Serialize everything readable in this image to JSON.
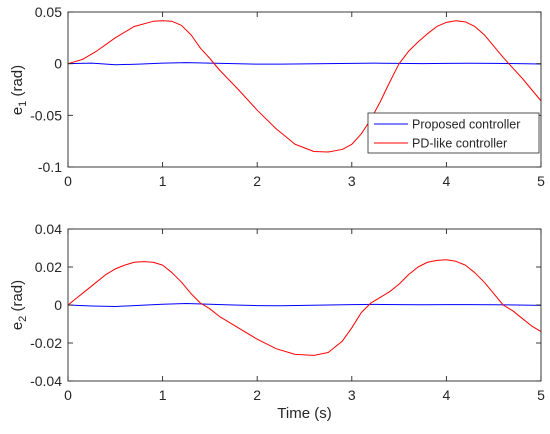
{
  "chart_data": [
    {
      "type": "line",
      "xlabel": "",
      "ylabel": "e",
      "ylabel_sub": "1",
      "ylabel_unit": " (rad)",
      "xlim": [
        0,
        5
      ],
      "ylim": [
        -0.1,
        0.05
      ],
      "xticks": [
        0,
        1,
        2,
        3,
        4,
        5
      ],
      "xtick_labels": [
        "0",
        "1",
        "2",
        "3",
        "4",
        "5"
      ],
      "yticks": [
        -0.1,
        -0.05,
        0,
        0.05
      ],
      "ytick_labels": [
        "-0.1",
        "-0.05",
        "0",
        "0.05"
      ],
      "grid": false,
      "legend": {
        "location": "right",
        "entries": [
          "Proposed controller",
          "PD-like controller"
        ]
      },
      "series": [
        {
          "name": "Proposed controller",
          "color": "#0000ff",
          "x": [
            0,
            0.25,
            0.5,
            0.75,
            1.0,
            1.25,
            1.5,
            1.75,
            2.0,
            2.25,
            2.5,
            2.75,
            3.0,
            3.25,
            3.5,
            3.75,
            4.0,
            4.25,
            4.5,
            4.75,
            5.0
          ],
          "y": [
            0,
            0.0005,
            -0.001,
            -0.0005,
            0.0005,
            0.001,
            0.0005,
            0,
            -0.0005,
            -0.0005,
            -0.0002,
            0,
            0.0003,
            0.0005,
            0.0003,
            0,
            0.0003,
            0.0004,
            0.0003,
            0,
            -0.0003
          ]
        },
        {
          "name": "PD-like controller",
          "color": "#ff0000",
          "x": [
            0,
            0.15,
            0.3,
            0.5,
            0.7,
            0.9,
            1.0,
            1.1,
            1.2,
            1.3,
            1.4,
            1.5,
            1.6,
            1.8,
            2.0,
            2.2,
            2.4,
            2.6,
            2.75,
            2.9,
            3.0,
            3.1,
            3.2,
            3.3,
            3.4,
            3.5,
            3.6,
            3.7,
            3.8,
            3.9,
            4.0,
            4.1,
            4.2,
            4.3,
            4.4,
            4.5,
            4.6,
            4.7,
            4.8,
            4.9,
            5.0
          ],
          "y": [
            0,
            0.004,
            0.012,
            0.025,
            0.036,
            0.041,
            0.0415,
            0.041,
            0.037,
            0.028,
            0.015,
            0.005,
            -0.006,
            -0.025,
            -0.045,
            -0.063,
            -0.078,
            -0.085,
            -0.0855,
            -0.083,
            -0.078,
            -0.068,
            -0.054,
            -0.037,
            -0.018,
            0.0,
            0.012,
            0.021,
            0.029,
            0.036,
            0.04,
            0.0415,
            0.0405,
            0.036,
            0.028,
            0.017,
            0.006,
            -0.004,
            -0.014,
            -0.025,
            -0.036
          ]
        }
      ]
    },
    {
      "type": "line",
      "xlabel": "Time (s)",
      "ylabel": "e",
      "ylabel_sub": "2",
      "ylabel_unit": " (rad)",
      "xlim": [
        0,
        5
      ],
      "ylim": [
        -0.04,
        0.04
      ],
      "xticks": [
        0,
        1,
        2,
        3,
        4,
        5
      ],
      "xtick_labels": [
        "0",
        "1",
        "2",
        "3",
        "4",
        "5"
      ],
      "yticks": [
        -0.04,
        -0.02,
        0,
        0.02,
        0.04
      ],
      "ytick_labels": [
        "-0.04",
        "-0.02",
        "0",
        "0.02",
        "0.04"
      ],
      "grid": false,
      "series": [
        {
          "name": "Proposed controller",
          "color": "#0000ff",
          "x": [
            0,
            0.25,
            0.5,
            0.75,
            1.0,
            1.25,
            1.5,
            1.75,
            2.0,
            2.25,
            2.5,
            2.75,
            3.0,
            3.25,
            3.5,
            3.75,
            4.0,
            4.25,
            4.5,
            4.75,
            5.0
          ],
          "y": [
            0,
            -0.0005,
            -0.0008,
            -0.0002,
            0.0004,
            0.0008,
            0.0004,
            0,
            -0.0003,
            -0.0004,
            -0.0002,
            0,
            0.0002,
            0.0003,
            0.0002,
            0.0001,
            0.0002,
            0.0002,
            0.0001,
            0,
            -0.0002
          ]
        },
        {
          "name": "PD-like controller",
          "color": "#ff0000",
          "x": [
            0,
            0.1,
            0.2,
            0.3,
            0.4,
            0.5,
            0.6,
            0.7,
            0.8,
            0.9,
            1.0,
            1.1,
            1.2,
            1.3,
            1.4,
            1.5,
            1.6,
            1.8,
            2.0,
            2.2,
            2.4,
            2.6,
            2.75,
            2.9,
            3.0,
            3.1,
            3.2,
            3.3,
            3.4,
            3.5,
            3.6,
            3.7,
            3.8,
            3.9,
            4.0,
            4.1,
            4.2,
            4.3,
            4.4,
            4.5,
            4.6,
            4.7,
            4.8,
            4.9,
            5.0
          ],
          "y": [
            0,
            0.004,
            0.008,
            0.012,
            0.016,
            0.019,
            0.021,
            0.0225,
            0.0228,
            0.0225,
            0.021,
            0.017,
            0.012,
            0.006,
            0.001,
            -0.002,
            -0.006,
            -0.012,
            -0.018,
            -0.023,
            -0.026,
            -0.0265,
            -0.025,
            -0.019,
            -0.012,
            -0.004,
            0.001,
            0.004,
            0.007,
            0.011,
            0.016,
            0.02,
            0.0225,
            0.0235,
            0.0238,
            0.023,
            0.021,
            0.017,
            0.012,
            0.006,
            0.0,
            -0.003,
            -0.007,
            -0.011,
            -0.014
          ]
        }
      ]
    }
  ]
}
